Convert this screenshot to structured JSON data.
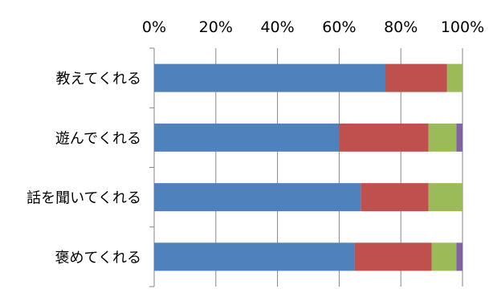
{
  "chart_data": {
    "type": "bar",
    "orientation": "horizontal",
    "stacked": true,
    "categories": [
      "教えてくれる",
      "遊んでくれる",
      "話を聞いてくれる",
      "褒めてくれる"
    ],
    "series": [
      {
        "color": "#4F81BD",
        "values": [
          75,
          60,
          67,
          65
        ]
      },
      {
        "color": "#C0504D",
        "values": [
          20,
          29,
          22,
          25
        ]
      },
      {
        "color": "#9BBB59",
        "values": [
          5,
          9,
          11,
          8
        ]
      },
      {
        "color": "#8064A2",
        "values": [
          0,
          2,
          0,
          2
        ]
      }
    ],
    "x_ticks": [
      "0%",
      "20%",
      "40%",
      "60%",
      "80%",
      "100%"
    ],
    "xlim": [
      0,
      100
    ],
    "x_axis_position": "top",
    "grid": true,
    "legend": "none"
  }
}
